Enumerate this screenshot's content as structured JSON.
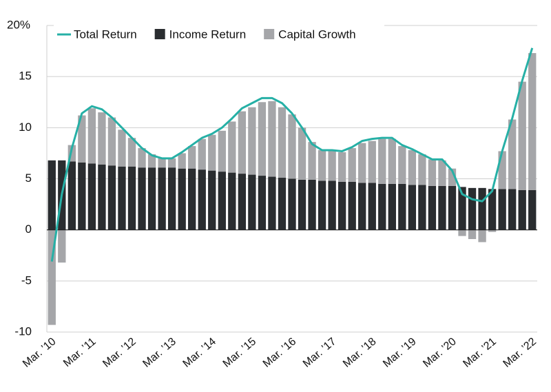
{
  "chart_data": {
    "type": "bar",
    "stacked": true,
    "grid": true,
    "legend": "top-left",
    "categories": [
      "Mar. ’10",
      null,
      null,
      null,
      "Mar. ’11",
      null,
      null,
      null,
      "Mar. ’12",
      null,
      null,
      null,
      "Mar. ’13",
      null,
      null,
      null,
      "Mar. ’14",
      null,
      null,
      null,
      "Mar. ’15",
      null,
      null,
      null,
      "Mar. ’16",
      null,
      null,
      null,
      "Mar. ’17",
      null,
      null,
      null,
      "Mar. ’18",
      null,
      null,
      null,
      "Mar. ’19",
      null,
      null,
      null,
      "Mar. ’20",
      null,
      null,
      null,
      "Mar. ’21",
      null,
      null,
      null,
      "Mar. ’22"
    ],
    "series": [
      {
        "name": "Total Return",
        "type": "line",
        "color": "#26b0a6",
        "values": [
          -3.1,
          3.5,
          8.0,
          11.4,
          12.1,
          11.8,
          11.0,
          10.0,
          9.0,
          8.0,
          7.3,
          7.0,
          7.0,
          7.6,
          8.3,
          9.0,
          9.4,
          10.0,
          10.9,
          11.9,
          12.4,
          12.9,
          12.9,
          12.4,
          11.4,
          10.0,
          8.4,
          7.8,
          7.8,
          7.7,
          8.1,
          8.7,
          8.9,
          9.0,
          9.0,
          8.3,
          7.9,
          7.4,
          6.9,
          6.9,
          5.8,
          3.5,
          3.0,
          2.8,
          3.8,
          7.7,
          10.9,
          14.6,
          17.8
        ]
      },
      {
        "name": "Income Return",
        "type": "bar",
        "color": "#2a2d30",
        "values": [
          6.8,
          6.8,
          6.7,
          6.6,
          6.5,
          6.4,
          6.3,
          6.2,
          6.2,
          6.1,
          6.1,
          6.1,
          6.1,
          6.0,
          6.0,
          5.9,
          5.8,
          5.7,
          5.6,
          5.5,
          5.4,
          5.3,
          5.2,
          5.1,
          5.0,
          4.9,
          4.9,
          4.8,
          4.8,
          4.7,
          4.7,
          4.6,
          4.6,
          4.5,
          4.5,
          4.5,
          4.4,
          4.4,
          4.3,
          4.3,
          4.3,
          4.2,
          4.1,
          4.1,
          4.0,
          4.0,
          4.0,
          3.9,
          3.9
        ]
      },
      {
        "name": "Capital Growth",
        "type": "bar",
        "color": "#a5a6a9",
        "values": [
          -9.3,
          -3.2,
          1.6,
          4.6,
          5.4,
          5.1,
          4.7,
          3.6,
          2.8,
          1.9,
          1.3,
          0.9,
          0.9,
          1.5,
          2.2,
          3.0,
          3.5,
          4.0,
          5.0,
          6.1,
          6.6,
          7.2,
          7.4,
          6.9,
          6.3,
          5.1,
          3.7,
          3.0,
          2.9,
          2.9,
          3.3,
          3.9,
          4.1,
          4.4,
          4.4,
          3.7,
          3.4,
          3.0,
          2.6,
          2.5,
          1.7,
          -0.6,
          -0.9,
          -1.2,
          -0.2,
          3.7,
          6.8,
          10.6,
          13.4
        ]
      }
    ],
    "ylim": [
      -10,
      20
    ],
    "yticks": [
      -10,
      -5,
      0,
      5,
      10,
      15,
      {
        "value": 20,
        "label": "20%"
      }
    ]
  }
}
